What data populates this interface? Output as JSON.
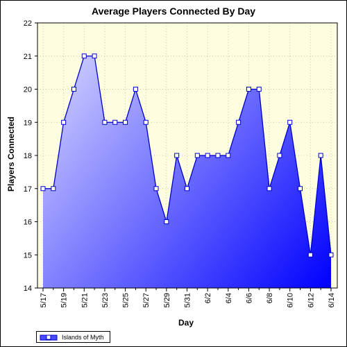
{
  "chart_data": {
    "type": "area",
    "title": "Average Players Connected By Day",
    "xlabel": "Day",
    "ylabel": "Players Connected",
    "ylim": [
      14,
      22
    ],
    "yticks": [
      14,
      15,
      16,
      17,
      18,
      19,
      20,
      21,
      22
    ],
    "x": [
      "5/17",
      "5/18",
      "5/19",
      "5/20",
      "5/21",
      "5/22",
      "5/23",
      "5/24",
      "5/25",
      "5/26",
      "5/27",
      "5/28",
      "5/29",
      "5/30",
      "5/31",
      "6/1",
      "6/2",
      "6/3",
      "6/4",
      "6/5",
      "6/6",
      "6/7",
      "6/8",
      "6/9",
      "6/10",
      "6/11",
      "6/12",
      "6/13",
      "6/14"
    ],
    "xtick_labels": [
      "5/17",
      "5/19",
      "5/21",
      "5/23",
      "5/25",
      "5/27",
      "5/29",
      "5/31",
      "6/2",
      "6/4",
      "6/6",
      "6/8",
      "6/10",
      "6/12",
      "6/14"
    ],
    "series": [
      {
        "name": "Islands of Myth",
        "values": [
          17,
          17,
          19,
          20,
          21,
          21,
          19,
          19,
          19,
          20,
          19,
          17,
          16,
          18,
          17,
          18,
          18,
          18,
          18,
          19,
          20,
          20,
          17,
          18,
          19,
          17,
          15,
          18,
          15
        ]
      }
    ],
    "grid": true,
    "legend_position": "bottom-left",
    "colors": {
      "plot_background": "#fdfde0",
      "line": "#0000cc",
      "fill_top": "#dcdcff",
      "fill_bottom": "#0000ff",
      "gridline": "#c8c8a8"
    }
  }
}
